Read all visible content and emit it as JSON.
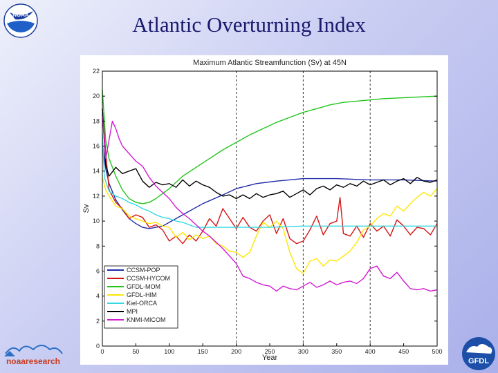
{
  "slide": {
    "title": "Atlantic Overturning Index",
    "logos": {
      "noaa": "NOAA",
      "noaa_research": "noaaresearch",
      "gfdl": "GFDL"
    }
  },
  "chart_data": {
    "type": "line",
    "title": "Maximum Atlantic Streamfunction (Sv) at 45N",
    "xlabel": "Year",
    "ylabel": "Sv",
    "xlim": [
      0,
      500
    ],
    "ylim": [
      0,
      22
    ],
    "xticks": [
      0,
      50,
      100,
      150,
      200,
      250,
      300,
      350,
      400,
      450,
      500
    ],
    "yticks": [
      0,
      2,
      4,
      6,
      8,
      10,
      12,
      14,
      16,
      18,
      20,
      22
    ],
    "grid": "vertical dashed at 200, 300, 400",
    "legend_position": "bottom-left",
    "series": [
      {
        "name": "CCSM-POP",
        "color": "#1f2aa8",
        "x": [
          0,
          5,
          10,
          20,
          30,
          40,
          50,
          60,
          70,
          80,
          90,
          100,
          120,
          150,
          180,
          200,
          230,
          260,
          300,
          350,
          400,
          450,
          500
        ],
        "values": [
          16.2,
          14.2,
          13.0,
          11.7,
          10.9,
          10.2,
          9.8,
          9.5,
          9.4,
          9.5,
          9.6,
          9.9,
          10.5,
          11.4,
          12.1,
          12.6,
          13.0,
          13.2,
          13.4,
          13.4,
          13.3,
          13.3,
          13.2
        ]
      },
      {
        "name": "CCSM-HYCOM",
        "color": "#d41414",
        "x": [
          0,
          5,
          10,
          20,
          30,
          40,
          50,
          60,
          70,
          80,
          90,
          100,
          110,
          120,
          130,
          140,
          150,
          160,
          170,
          180,
          190,
          200,
          210,
          220,
          230,
          240,
          250,
          260,
          270,
          280,
          290,
          300,
          310,
          320,
          330,
          340,
          350,
          355,
          360,
          370,
          380,
          390,
          400,
          410,
          420,
          430,
          440,
          450,
          460,
          470,
          480,
          490,
          500
        ],
        "values": [
          19.0,
          15.5,
          12.5,
          11.5,
          11.0,
          10.2,
          10.5,
          10.3,
          9.5,
          9.7,
          9.3,
          8.4,
          8.8,
          8.2,
          8.9,
          8.4,
          9.2,
          10.2,
          9.6,
          11.0,
          10.2,
          9.4,
          10.3,
          9.5,
          9.2,
          10.0,
          10.5,
          9.0,
          10.2,
          8.6,
          8.2,
          8.4,
          9.3,
          10.4,
          8.9,
          9.8,
          10.0,
          11.9,
          9.0,
          8.8,
          9.6,
          8.7,
          9.8,
          9.2,
          9.6,
          8.8,
          10.1,
          9.6,
          8.9,
          9.5,
          9.4,
          8.9,
          9.8
        ]
      },
      {
        "name": "GFDL-MOM",
        "color": "#22c41c",
        "x": [
          0,
          5,
          10,
          20,
          30,
          40,
          50,
          60,
          70,
          80,
          90,
          100,
          110,
          120,
          140,
          160,
          180,
          200,
          220,
          240,
          260,
          280,
          300,
          320,
          340,
          360,
          380,
          400,
          420,
          440,
          460,
          480,
          500
        ],
        "values": [
          20.5,
          16.5,
          15.0,
          13.6,
          12.5,
          11.8,
          11.5,
          11.4,
          11.5,
          11.8,
          12.2,
          12.6,
          13.1,
          13.6,
          14.3,
          15.0,
          15.7,
          16.3,
          16.9,
          17.4,
          17.9,
          18.3,
          18.7,
          19.0,
          19.3,
          19.5,
          19.6,
          19.7,
          19.8,
          19.85,
          19.9,
          19.95,
          20.0
        ]
      },
      {
        "name": "GFDL-HIM",
        "color": "#ffe600",
        "x": [
          0,
          5,
          10,
          20,
          30,
          40,
          50,
          60,
          70,
          80,
          90,
          100,
          110,
          120,
          130,
          140,
          150,
          160,
          170,
          180,
          190,
          200,
          210,
          220,
          230,
          240,
          250,
          260,
          270,
          280,
          290,
          300,
          310,
          320,
          330,
          340,
          350,
          360,
          370,
          380,
          390,
          400,
          410,
          420,
          430,
          440,
          450,
          460,
          470,
          480,
          490,
          500
        ],
        "values": [
          13.5,
          12.5,
          12.0,
          11.2,
          11.0,
          10.4,
          10.2,
          10.0,
          9.8,
          9.9,
          9.6,
          9.5,
          8.7,
          9.1,
          8.5,
          8.9,
          8.6,
          8.8,
          8.2,
          8.0,
          7.6,
          7.5,
          7.1,
          7.5,
          8.8,
          9.9,
          9.5,
          10.0,
          9.4,
          7.5,
          6.2,
          5.8,
          6.8,
          7.0,
          6.4,
          6.9,
          6.8,
          7.2,
          7.6,
          8.3,
          9.3,
          9.6,
          10.2,
          10.6,
          10.4,
          11.2,
          10.8,
          11.4,
          11.9,
          12.3,
          12.0,
          12.6
        ]
      },
      {
        "name": "Kiel-ORCA",
        "color": "#33d8e0",
        "x": [
          0,
          3,
          10,
          20,
          30,
          40,
          50,
          60,
          70,
          80,
          90,
          100,
          110,
          120,
          130,
          140,
          160,
          200,
          250,
          300,
          350,
          400,
          450,
          500
        ],
        "values": [
          17.0,
          13.5,
          12.4,
          12.0,
          11.8,
          11.5,
          11.3,
          11.0,
          10.8,
          10.5,
          10.3,
          10.2,
          10.0,
          9.9,
          9.7,
          9.5,
          9.5,
          9.5,
          9.5,
          9.6,
          9.6,
          9.6,
          9.6,
          9.6
        ]
      },
      {
        "name": "MPI",
        "color": "#000000",
        "x": [
          0,
          5,
          10,
          20,
          30,
          40,
          50,
          60,
          70,
          80,
          90,
          100,
          110,
          120,
          130,
          140,
          150,
          160,
          170,
          180,
          190,
          200,
          210,
          220,
          230,
          240,
          250,
          260,
          270,
          280,
          290,
          300,
          310,
          320,
          330,
          340,
          350,
          360,
          370,
          380,
          390,
          400,
          410,
          420,
          430,
          440,
          450,
          460,
          470,
          480,
          490,
          500
        ],
        "values": [
          19.0,
          14.5,
          13.6,
          14.3,
          13.8,
          14.0,
          14.2,
          13.2,
          12.7,
          13.1,
          12.9,
          13.0,
          12.7,
          13.3,
          12.8,
          13.2,
          12.9,
          12.7,
          12.3,
          12.0,
          12.1,
          11.8,
          12.1,
          11.8,
          12.2,
          11.9,
          12.1,
          12.2,
          12.4,
          11.9,
          12.2,
          12.5,
          12.1,
          12.6,
          12.8,
          12.5,
          12.9,
          12.7,
          13.0,
          12.8,
          13.2,
          12.9,
          13.1,
          13.3,
          12.9,
          13.2,
          13.4,
          13.0,
          13.5,
          13.2,
          13.1,
          13.3
        ]
      },
      {
        "name": "KNMI-MICOM",
        "color": "#d21ad2",
        "x": [
          0,
          5,
          10,
          15,
          20,
          25,
          30,
          40,
          50,
          60,
          70,
          80,
          90,
          100,
          110,
          120,
          130,
          140,
          150,
          160,
          170,
          180,
          190,
          200,
          210,
          220,
          230,
          240,
          250,
          260,
          270,
          280,
          290,
          300,
          310,
          320,
          330,
          340,
          350,
          360,
          370,
          380,
          390,
          400,
          410,
          420,
          430,
          440,
          450,
          460,
          470,
          480,
          490,
          500
        ],
        "values": [
          18.5,
          15.0,
          16.5,
          18.0,
          17.4,
          16.6,
          16.0,
          15.4,
          14.8,
          14.4,
          13.5,
          12.8,
          12.3,
          11.8,
          11.1,
          10.6,
          10.2,
          9.7,
          9.2,
          8.8,
          8.3,
          7.8,
          7.2,
          6.6,
          5.6,
          5.4,
          5.1,
          4.9,
          4.8,
          4.4,
          4.8,
          4.6,
          4.5,
          4.8,
          5.1,
          4.7,
          4.9,
          5.2,
          4.9,
          5.1,
          5.2,
          5.0,
          5.4,
          6.2,
          6.4,
          5.6,
          5.4,
          5.9,
          5.2,
          4.6,
          4.5,
          4.6,
          4.4,
          4.5
        ]
      }
    ]
  }
}
